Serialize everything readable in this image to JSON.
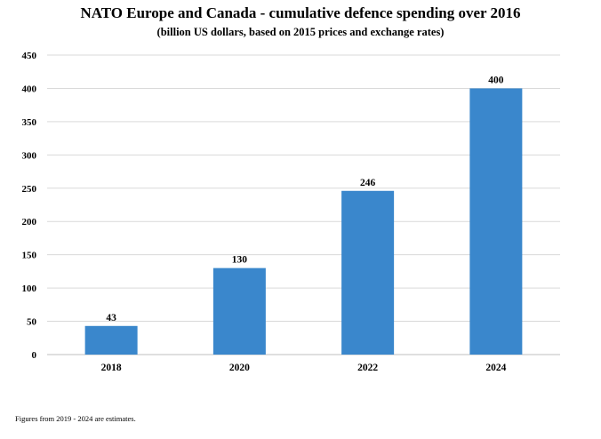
{
  "chart_data": {
    "type": "bar",
    "title": "NATO Europe and Canada - cumulative defence spending over 2016",
    "subtitle": "(billion US dollars, based on 2015 prices and exchange rates)",
    "categories": [
      "2018",
      "2020",
      "2022",
      "2024"
    ],
    "values": [
      43,
      130,
      246,
      400
    ],
    "data_labels": [
      "43",
      "130",
      "246",
      "400"
    ],
    "ylim": [
      0,
      450
    ],
    "yticks": [
      "0",
      "50",
      "100",
      "150",
      "200",
      "250",
      "300",
      "350",
      "400",
      "450"
    ],
    "xlabel": "",
    "ylabel": "",
    "grid": true,
    "bar_color": "#3a87cc",
    "grid_color": "#d9d9d9",
    "axis_color": "#bfbfbf"
  },
  "footnote": "Figures from 2019 - 2024 are estimates."
}
